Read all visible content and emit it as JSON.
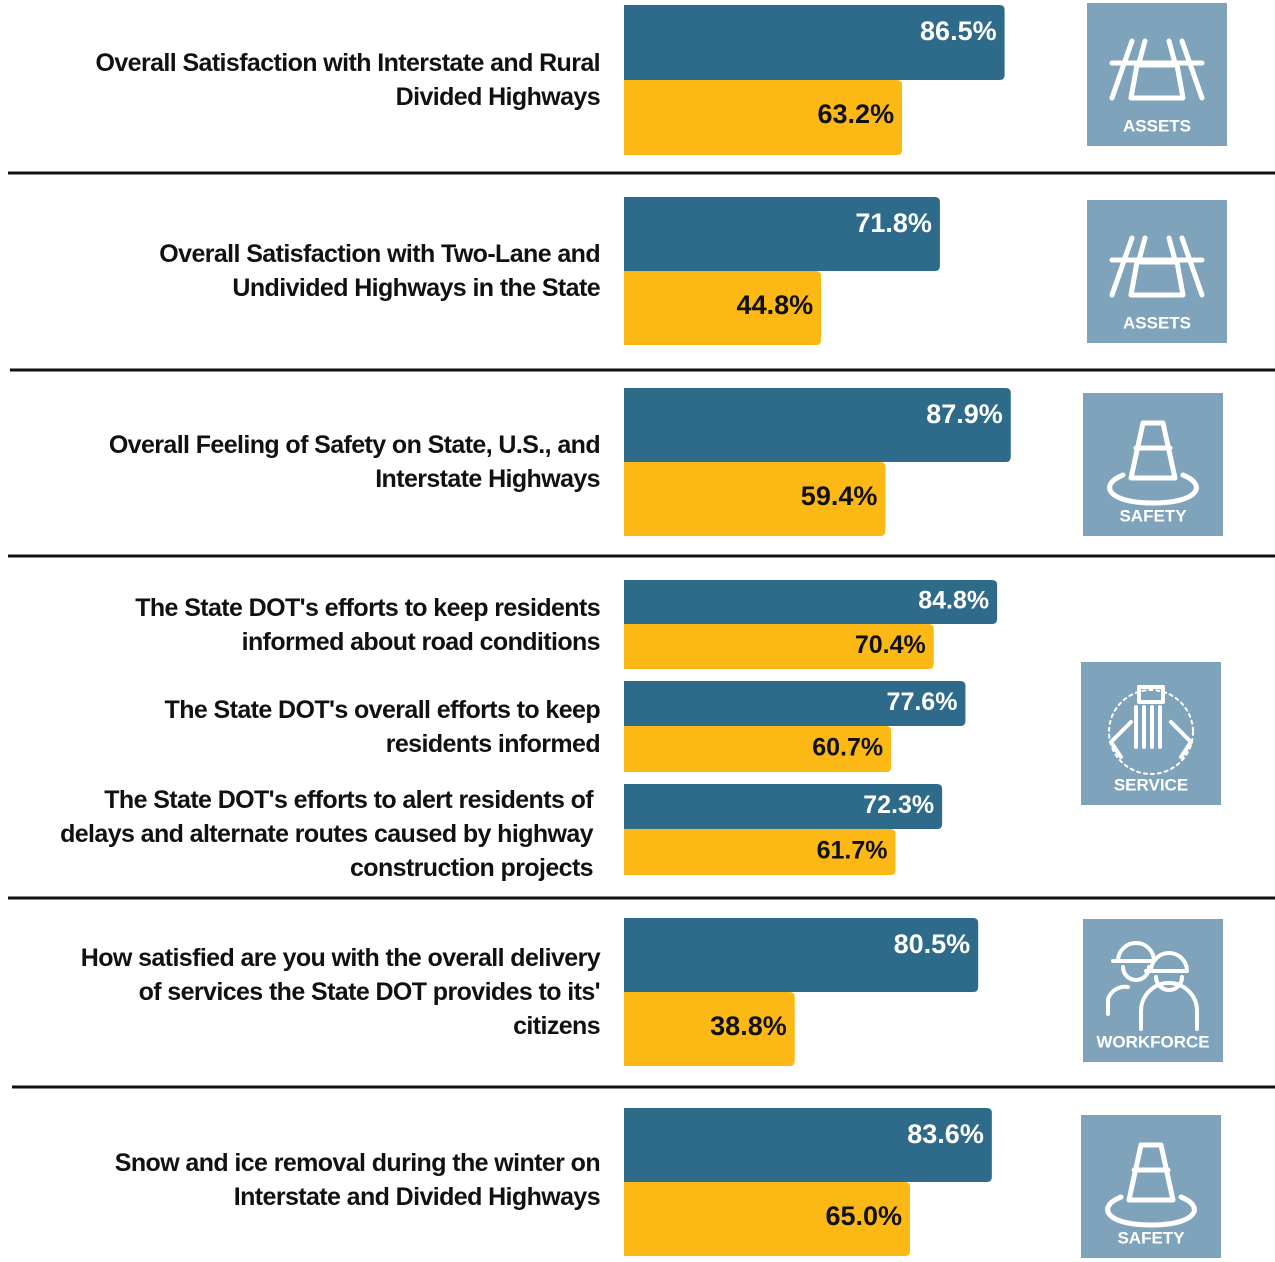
{
  "chart_data": {
    "type": "bar",
    "orientation": "horizontal",
    "categories": [
      "Overall Satisfaction with Interstate and Rural Divided Highways",
      "Overall Satisfaction with Two-Lane and Undivided Highways in the State",
      "Overall Feeling of Safety on State, U.S., and Interstate Highways",
      "The State DOT's efforts to keep residents informed about road conditions",
      "The State DOT's overall efforts to keep residents informed",
      "The State DOT's efforts to alert residents of delays and alternate routes caused by highway construction projects",
      "How satisfied are you with the overall delivery of services the State DOT provides to its' citizens",
      "Snow and ice removal during the winter on Interstate and Divided Highways"
    ],
    "series": [
      {
        "color": "#2e6b8a",
        "values": [
          86.5,
          71.8,
          87.9,
          84.8,
          77.6,
          72.3,
          80.5,
          83.6
        ],
        "value_labels": [
          "86.5%",
          "71.8%",
          "87.9%",
          "84.8%",
          "77.6%",
          "72.3%",
          "80.5%",
          "83.6%"
        ]
      },
      {
        "color": "#fcb814",
        "values": [
          63.2,
          44.8,
          59.4,
          70.4,
          60.7,
          61.7,
          38.8,
          65.0
        ],
        "value_labels": [
          "63.2%",
          "44.8%",
          "59.4%",
          "70.4%",
          "60.7%",
          "61.7%",
          "38.8%",
          "65.0%"
        ]
      }
    ],
    "xlim": [
      0,
      100
    ],
    "icons": [
      "ASSETS",
      "ASSETS",
      "SAFETY",
      "SERVICE",
      "WORKFORCE",
      "SAFETY"
    ]
  }
}
